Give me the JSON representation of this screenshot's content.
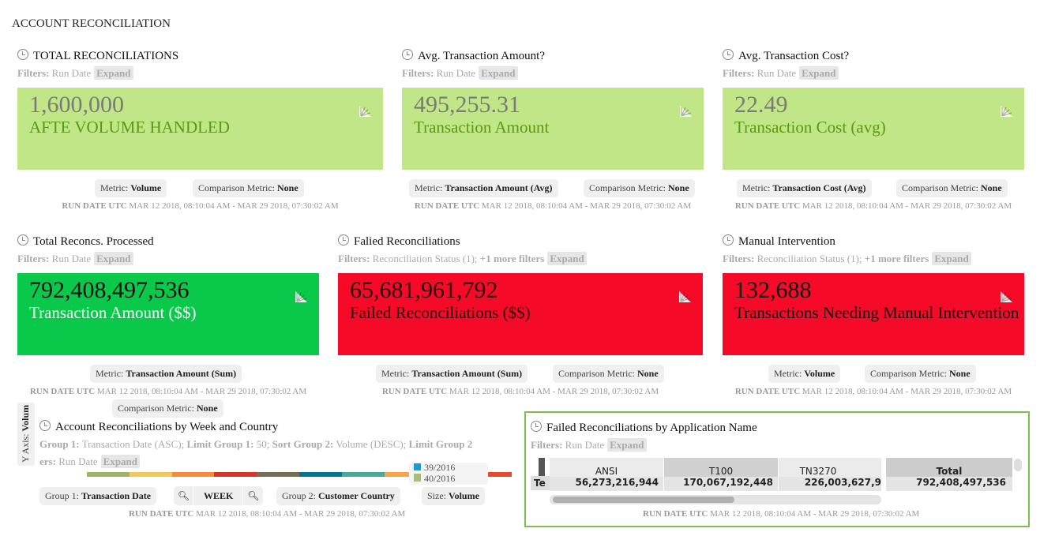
{
  "page_title": "ACCOUNT RECONCILIATION",
  "run_date_label": "RUN DATE UTC",
  "run_date_range": "MAR 12 2018, 08:10:04 AM - MAR 29 2018, 07:30:02 AM",
  "filters_label": "Filters:",
  "expand_label": "Expand",
  "metric_label": "Metric:",
  "comparison_label": "Comparison Metric:",
  "widgets": [
    {
      "title": "TOTAL RECONCILIATIONS",
      "filters": "Run Date",
      "value": "1,600,000",
      "label": "AFTE VOLUME HANDLED",
      "metric": "Volume",
      "comparison": "None",
      "bg": "#c0e687",
      "value_color": "#7a7a7a",
      "label_color": "#5a9a10"
    },
    {
      "title": "Avg. Transaction Amount?",
      "filters": "Run Date",
      "value": "495,255.31",
      "label": "Transaction Amount",
      "metric": "Transaction Amount (Avg)",
      "comparison": "None",
      "bg": "#c0e687",
      "value_color": "#7a7a7a",
      "label_color": "#5a9a10"
    },
    {
      "title": "Avg. Transaction Cost?",
      "filters": "Run Date",
      "value": "22.49",
      "label": "Transaction Cost (avg)",
      "metric": "Transaction Cost (Avg)",
      "comparison": "None",
      "bg": "#c0e687",
      "value_color": "#7a7a7a",
      "label_color": "#5a9a10"
    },
    {
      "title": "Total Reconcs. Processed",
      "filters": "Run Date",
      "value": "792,408,497,536",
      "label": "Transaction Amount ($$)",
      "metric": "Transaction Amount (Sum)",
      "comparison": "None",
      "bg": "#0ac84a",
      "value_color": "#111111",
      "label_color": "#ffffff"
    },
    {
      "title": "Falied Reconciliations",
      "filters": "Reconciliation Status (1);",
      "filters_more": "+1 more filters",
      "value": "65,681,961,792",
      "label": "Failed Reconciliations ($$)",
      "metric": "Transaction Amount (Sum)",
      "comparison": "None",
      "bg": "#f50a28",
      "value_color": "#2a0505",
      "label_color": "#2a0505"
    },
    {
      "title": "Manual Intervention",
      "filters": "Reconciliation Status (1);",
      "filters_more": "+1 more filters",
      "value": "132,688",
      "label": "Transactions Needing Manual Intervention",
      "metric": "Volume",
      "comparison": "None",
      "bg": "#f50a28",
      "value_color": "#111111",
      "label_color": "#111111"
    }
  ],
  "week_chart": {
    "title": "Account Reconciliations by Week and Country",
    "y_axis_label": "Y Axis:",
    "y_axis_value": "Volum",
    "config_parts": [
      {
        "k": "Group 1:",
        "v": "Transaction Date (ASC);"
      },
      {
        "k": "Limit Group 1:",
        "v": "50;"
      },
      {
        "k": "Sort Group 2:",
        "v": "Volume (DESC);"
      },
      {
        "k": "Limit Group 2",
        "v": ""
      }
    ],
    "filters_partial": "ers:",
    "filters": "Run Date",
    "legend": [
      {
        "label": "39/2016",
        "color": "#1a9ad0"
      },
      {
        "label": "40/2016",
        "color": "#a8bd7a"
      }
    ],
    "stripe_colors": [
      "#9db36a",
      "#f2c75c",
      "#f98a3a",
      "#d2352a",
      "#786c54",
      "#00778f",
      "#4aa89a",
      "#f9a34a",
      "#fd6a35",
      "#e64a2e"
    ],
    "group1_label": "Group 1:",
    "group1_value": "Transaction Date",
    "zoom_value": "WEEK",
    "group2_label": "Group 2:",
    "group2_value": "Customer Country",
    "size_label": "Size:",
    "size_value": "Volume"
  },
  "app_table": {
    "title": "Failed Reconciliations by Application Name",
    "filters": "Run Date",
    "row_label_partial": "Te",
    "columns": [
      "ANSI",
      "T100",
      "TN3270"
    ],
    "values": [
      "56,273,216,944",
      "170,067,192,448",
      "226,003,627,9"
    ],
    "total_label": "Total",
    "total_value": "792,408,497,536",
    "accent": "#7cbf4e"
  }
}
